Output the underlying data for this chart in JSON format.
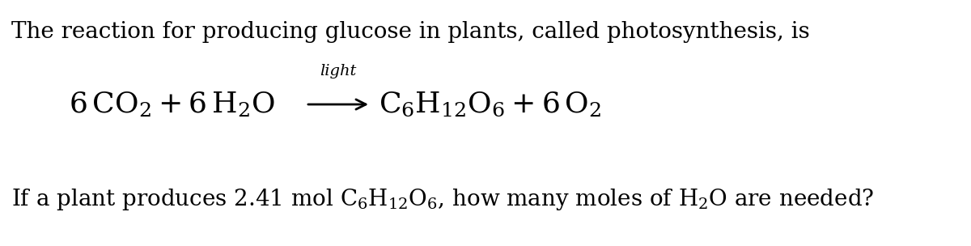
{
  "background_color": "#ffffff",
  "fig_width": 12.0,
  "fig_height": 3.04,
  "dpi": 100,
  "line1": "The reaction for producing glucose in plants, called photosynthesis, is",
  "line1_fontsize": 20,
  "eq_fontsize": 26,
  "light_fontsize": 14,
  "q_fontsize": 20,
  "font_family": "DejaVu Serif"
}
